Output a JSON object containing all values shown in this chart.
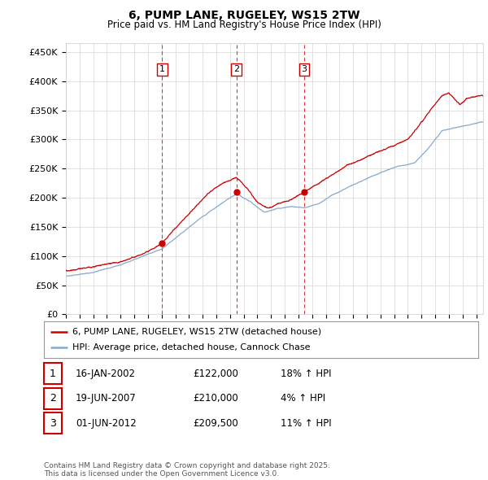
{
  "title_line1": "6, PUMP LANE, RUGELEY, WS15 2TW",
  "title_line2": "Price paid vs. HM Land Registry's House Price Index (HPI)",
  "ylabel_ticks": [
    "£0",
    "£50K",
    "£100K",
    "£150K",
    "£200K",
    "£250K",
    "£300K",
    "£350K",
    "£400K",
    "£450K"
  ],
  "ytick_values": [
    0,
    50000,
    100000,
    150000,
    200000,
    250000,
    300000,
    350000,
    400000,
    450000
  ],
  "xlim_start": 1995.0,
  "xlim_end": 2025.5,
  "ylim": [
    0,
    465000
  ],
  "legend_line1": "6, PUMP LANE, RUGELEY, WS15 2TW (detached house)",
  "legend_line2": "HPI: Average price, detached house, Cannock Chase",
  "line_color_red": "#cc0000",
  "line_color_blue": "#88aacc",
  "sale1_x": 2002.04,
  "sale1_y": 122000,
  "sale1_label": "1",
  "sale1_date": "16-JAN-2002",
  "sale1_price": "£122,000",
  "sale1_hpi": "18% ↑ HPI",
  "sale2_x": 2007.47,
  "sale2_y": 210000,
  "sale2_label": "2",
  "sale2_date": "19-JUN-2007",
  "sale2_price": "£210,000",
  "sale2_hpi": "4% ↑ HPI",
  "sale3_x": 2012.42,
  "sale3_y": 209500,
  "sale3_label": "3",
  "sale3_date": "01-JUN-2012",
  "sale3_price": "£209,500",
  "sale3_hpi": "11% ↑ HPI",
  "footer_text": "Contains HM Land Registry data © Crown copyright and database right 2025.\nThis data is licensed under the Open Government Licence v3.0.",
  "background_color": "#ffffff",
  "grid_color": "#dddddd"
}
